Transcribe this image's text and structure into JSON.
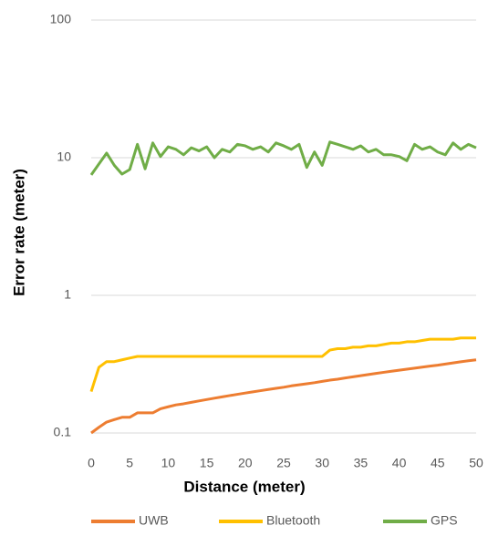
{
  "chart_data": {
    "type": "line",
    "y_label": "Error rate (meter)",
    "x_label": "Distance (meter)",
    "x": [
      0,
      1,
      2,
      3,
      4,
      5,
      6,
      7,
      8,
      9,
      10,
      11,
      12,
      13,
      14,
      15,
      16,
      17,
      18,
      19,
      20,
      21,
      22,
      23,
      24,
      25,
      26,
      27,
      28,
      29,
      30,
      31,
      32,
      33,
      34,
      35,
      36,
      37,
      38,
      39,
      40,
      41,
      42,
      43,
      44,
      45,
      46,
      47,
      48,
      49,
      50
    ],
    "series": [
      {
        "name": "UWB",
        "color": "#ed7d31",
        "values": [
          0.1,
          0.11,
          0.12,
          0.125,
          0.13,
          0.13,
          0.14,
          0.14,
          0.14,
          0.15,
          0.155,
          0.16,
          0.163,
          0.167,
          0.171,
          0.175,
          0.179,
          0.183,
          0.187,
          0.191,
          0.195,
          0.199,
          0.203,
          0.207,
          0.211,
          0.215,
          0.22,
          0.224,
          0.228,
          0.232,
          0.237,
          0.242,
          0.246,
          0.251,
          0.256,
          0.261,
          0.266,
          0.271,
          0.276,
          0.281,
          0.286,
          0.291,
          0.296,
          0.301,
          0.306,
          0.311,
          0.317,
          0.323,
          0.329,
          0.335,
          0.34
        ]
      },
      {
        "name": "Bluetooth",
        "color": "#ffc000",
        "values": [
          0.2,
          0.3,
          0.33,
          0.33,
          0.34,
          0.35,
          0.36,
          0.36,
          0.36,
          0.36,
          0.36,
          0.36,
          0.36,
          0.36,
          0.36,
          0.36,
          0.36,
          0.36,
          0.36,
          0.36,
          0.36,
          0.36,
          0.36,
          0.36,
          0.36,
          0.36,
          0.36,
          0.36,
          0.36,
          0.36,
          0.36,
          0.4,
          0.41,
          0.41,
          0.42,
          0.42,
          0.43,
          0.43,
          0.44,
          0.45,
          0.45,
          0.46,
          0.46,
          0.47,
          0.48,
          0.48,
          0.48,
          0.48,
          0.49,
          0.49,
          0.49
        ]
      },
      {
        "name": "GPS",
        "color": "#70ad47",
        "values": [
          7.5,
          9.0,
          10.8,
          8.8,
          7.6,
          8.2,
          12.5,
          8.3,
          12.8,
          10.2,
          12.0,
          11.5,
          10.5,
          11.8,
          11.2,
          12.0,
          10.0,
          11.5,
          11.0,
          12.5,
          12.2,
          11.5,
          12.0,
          11.0,
          12.8,
          12.2,
          11.5,
          12.5,
          8.5,
          11.0,
          8.8,
          13.0,
          12.5,
          12.0,
          11.5,
          12.2,
          11.0,
          11.5,
          10.5,
          10.5,
          10.2,
          9.5,
          12.5,
          11.5,
          12.0,
          11.0,
          10.5,
          12.8,
          11.5,
          12.5,
          11.8
        ]
      }
    ],
    "xlim": [
      0,
      50
    ],
    "xticks": [
      0,
      5,
      10,
      15,
      20,
      25,
      30,
      35,
      40,
      45,
      50
    ],
    "ylim": [
      0.1,
      100
    ],
    "yticks": [
      0.1,
      1,
      10,
      100
    ],
    "ylog": true,
    "grid": true,
    "legend": "bottom"
  }
}
